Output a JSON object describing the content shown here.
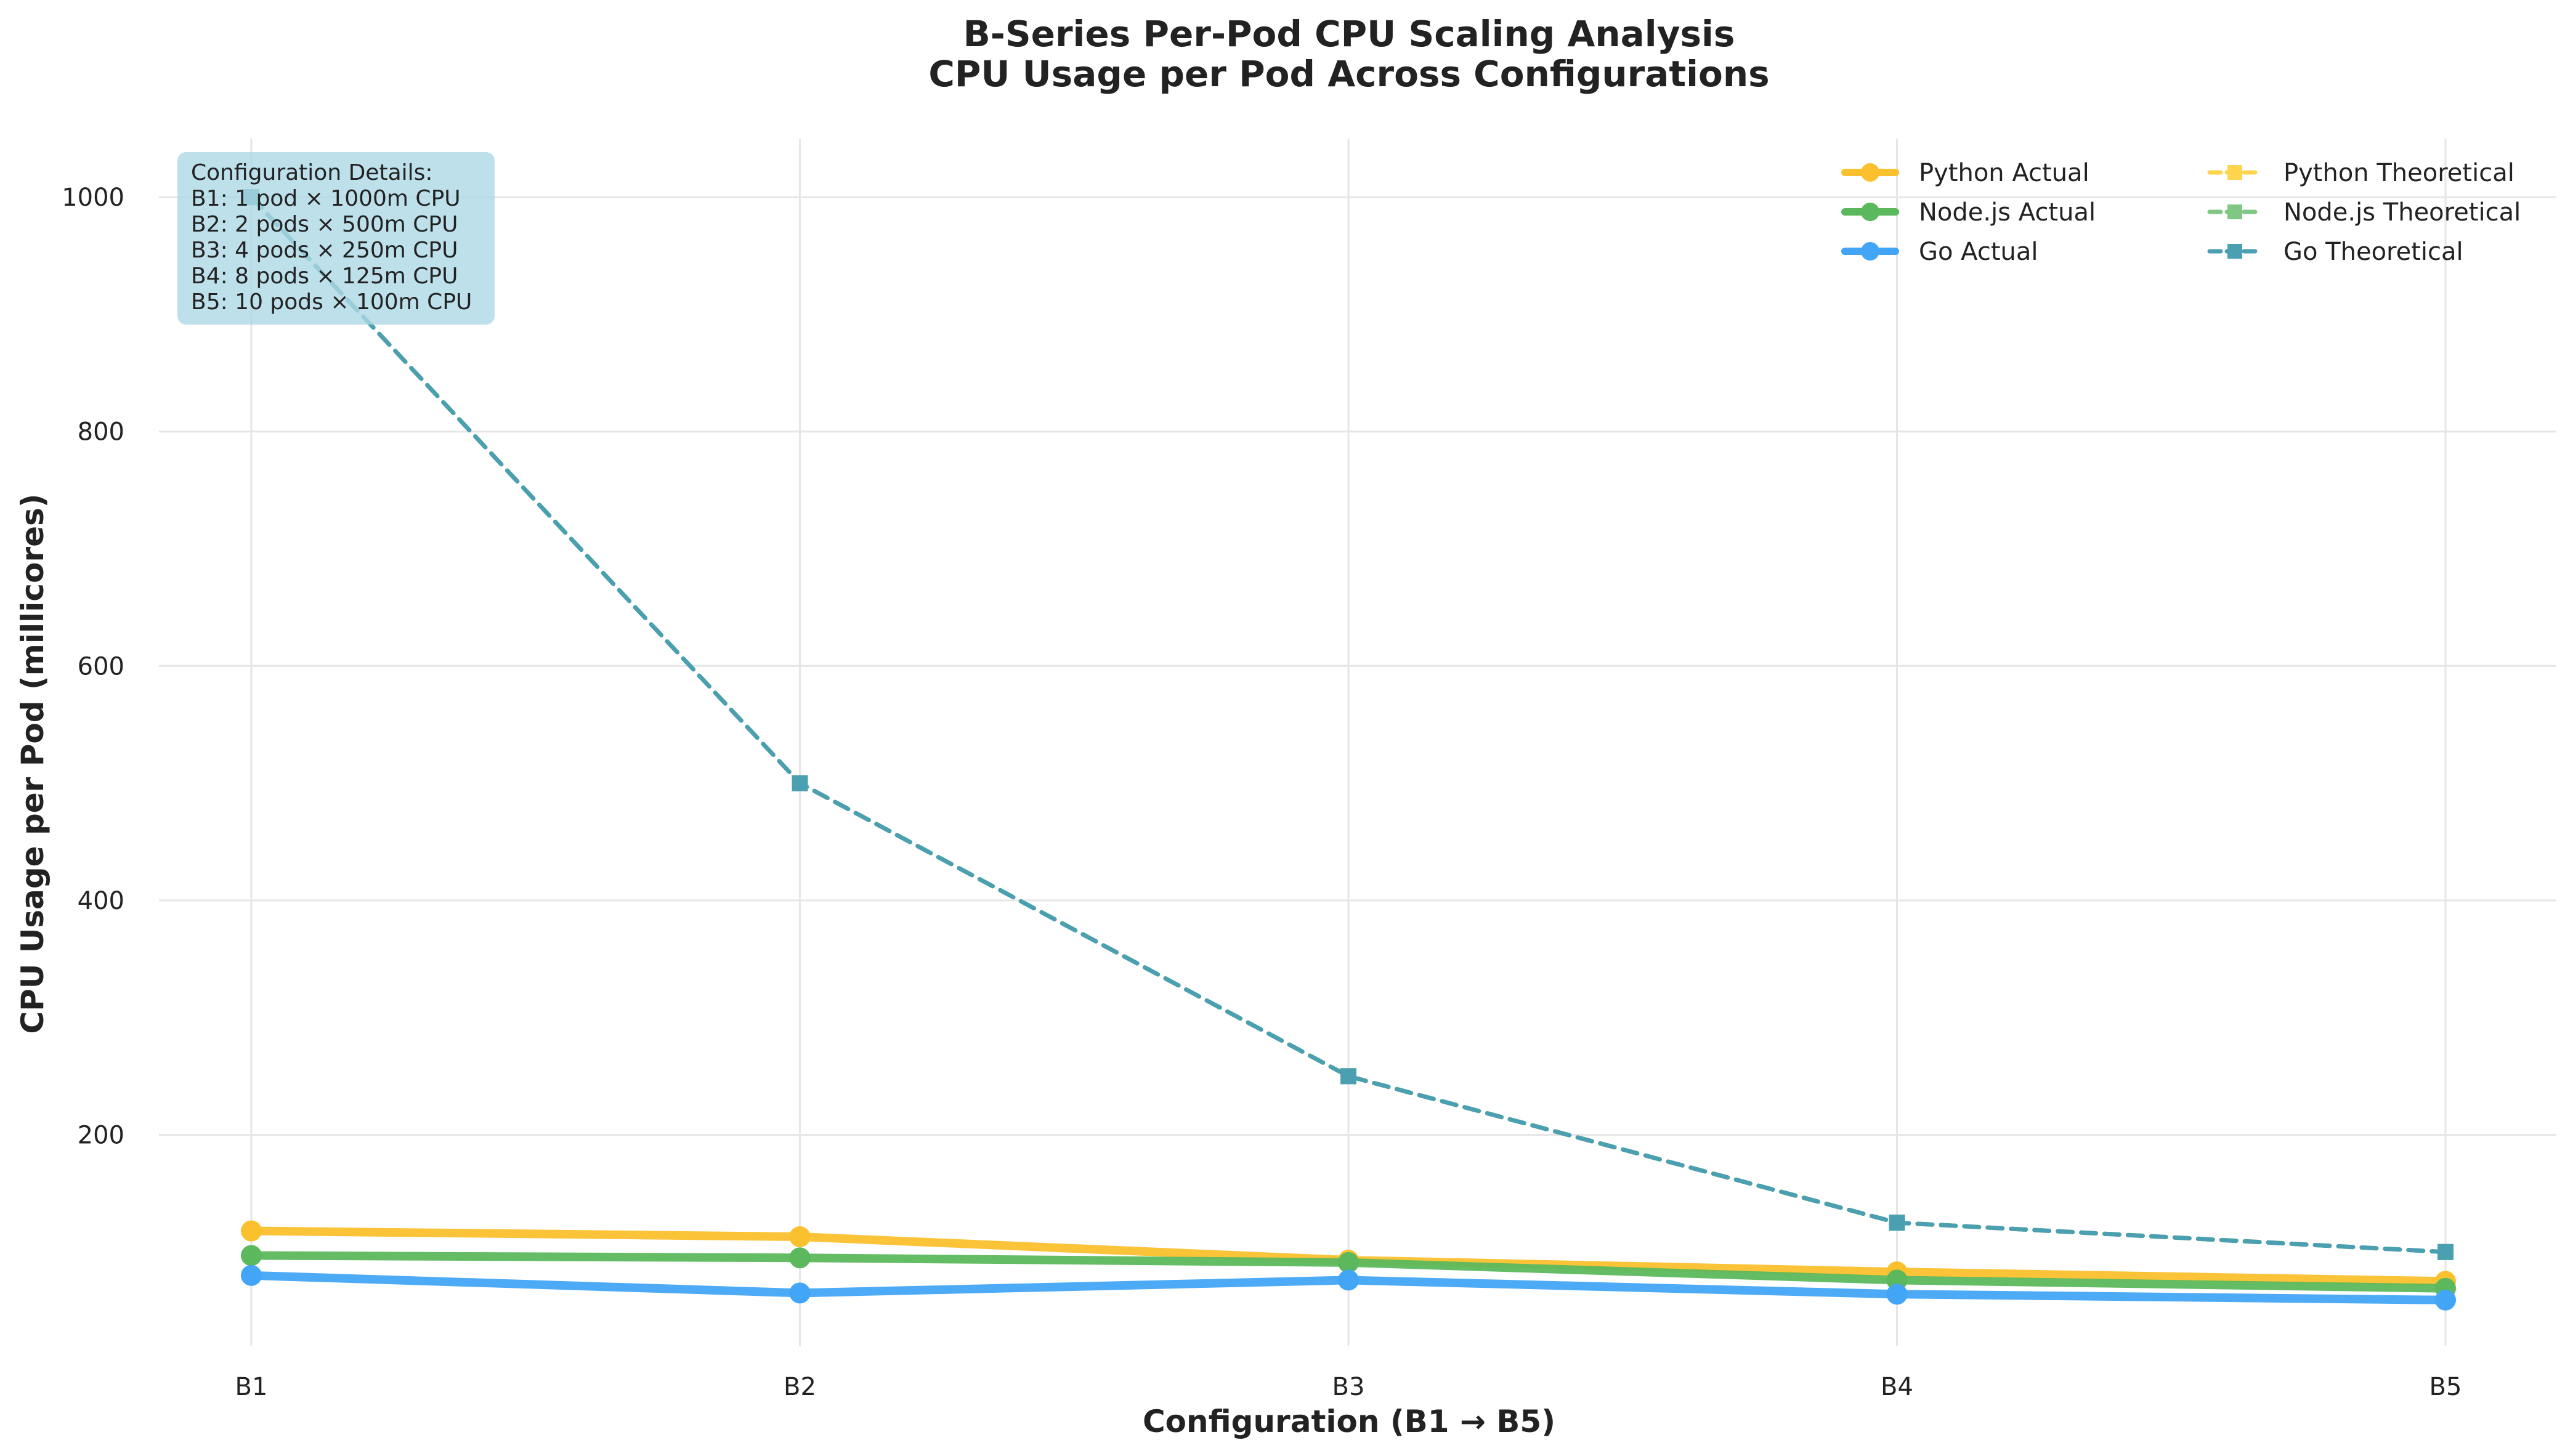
{
  "chart_data": {
    "type": "line",
    "title": "B-Series Per-Pod CPU Scaling Analysis",
    "subtitle": "CPU Usage per Pod Across Configurations",
    "xlabel": "Configuration (B1 → B5)",
    "ylabel": "CPU Usage per Pod (millicores)",
    "categories": [
      "B1",
      "B2",
      "B3",
      "B4",
      "B5"
    ],
    "ylim": [
      20,
      1050
    ],
    "yticks": [
      200,
      400,
      600,
      800,
      1000
    ],
    "grid": true,
    "legend_position": "top-right",
    "series": [
      {
        "name": "Python Actual",
        "values": [
          118,
          113,
          93,
          83,
          75
        ],
        "color": "#FBC02D",
        "style": "solid",
        "marker": "circle"
      },
      {
        "name": "Python Theoretical",
        "values": [
          1000,
          500,
          250,
          125,
          100
        ],
        "color": "#FFD54F",
        "style": "dashed",
        "marker": "square"
      },
      {
        "name": "Node.js Actual",
        "values": [
          97,
          95,
          91,
          76,
          69
        ],
        "color": "#5CB85C",
        "style": "solid",
        "marker": "circle"
      },
      {
        "name": "Node.js Theoretical",
        "values": [
          1000,
          500,
          250,
          125,
          100
        ],
        "color": "#81C784",
        "style": "dashed",
        "marker": "square"
      },
      {
        "name": "Go Actual",
        "values": [
          80,
          65,
          76,
          64,
          59
        ],
        "color": "#42A5F5",
        "style": "solid",
        "marker": "circle"
      },
      {
        "name": "Go Theoretical",
        "values": [
          1000,
          500,
          250,
          125,
          100
        ],
        "color": "#4A9FB0",
        "style": "dashed",
        "marker": "square"
      }
    ],
    "annotation": {
      "lines": [
        "Configuration Details:",
        "B1: 1 pod × 1000m CPU",
        "B2: 2 pods × 500m CPU",
        "B3: 4 pods × 250m CPU",
        "B4: 8 pods × 125m CPU",
        "B5: 10 pods × 100m CPU"
      ],
      "box_color": "#ADD8E6"
    }
  }
}
